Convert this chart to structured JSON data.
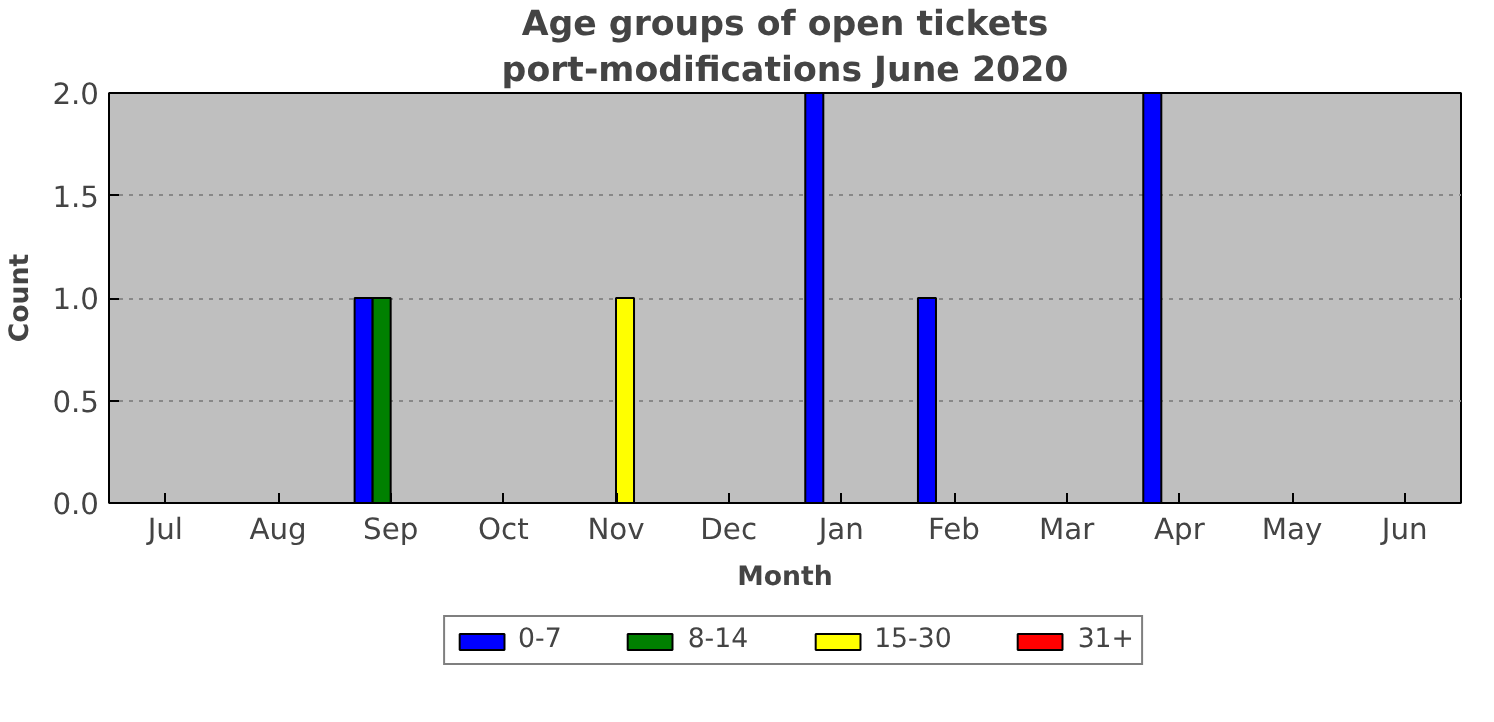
{
  "chart_data": {
    "type": "bar",
    "title": "Age groups of open tickets",
    "subtitle": "port-modifications June 2020",
    "xlabel": "Month",
    "ylabel": "Count",
    "categories": [
      "Jul",
      "Aug",
      "Sep",
      "Oct",
      "Nov",
      "Dec",
      "Jan",
      "Feb",
      "Mar",
      "Apr",
      "May",
      "Jun"
    ],
    "series": [
      {
        "name": "0-7",
        "color": "#0000ff",
        "values": [
          0,
          0,
          1,
          0,
          0,
          0,
          2,
          1,
          0,
          2,
          0,
          0
        ]
      },
      {
        "name": "8-14",
        "color": "#008000",
        "values": [
          0,
          0,
          1,
          0,
          0,
          0,
          0,
          0,
          0,
          0,
          0,
          0
        ]
      },
      {
        "name": "15-30",
        "color": "#ffff00",
        "values": [
          0,
          0,
          0,
          0,
          1,
          0,
          0,
          0,
          0,
          0,
          0,
          0
        ]
      },
      {
        "name": "31+",
        "color": "#ff0000",
        "values": [
          0,
          0,
          0,
          0,
          0,
          0,
          0,
          0,
          0,
          0,
          0,
          0
        ]
      }
    ],
    "ylim": [
      0,
      2
    ],
    "yticks": [
      {
        "value": 0,
        "label": "0.0"
      },
      {
        "value": 0.5,
        "label": "0.5"
      },
      {
        "value": 1,
        "label": "1.0"
      },
      {
        "value": 1.5,
        "label": "1.5"
      },
      {
        "value": 2,
        "label": "2.0"
      }
    ],
    "grid": "y",
    "legend": "bottom"
  }
}
